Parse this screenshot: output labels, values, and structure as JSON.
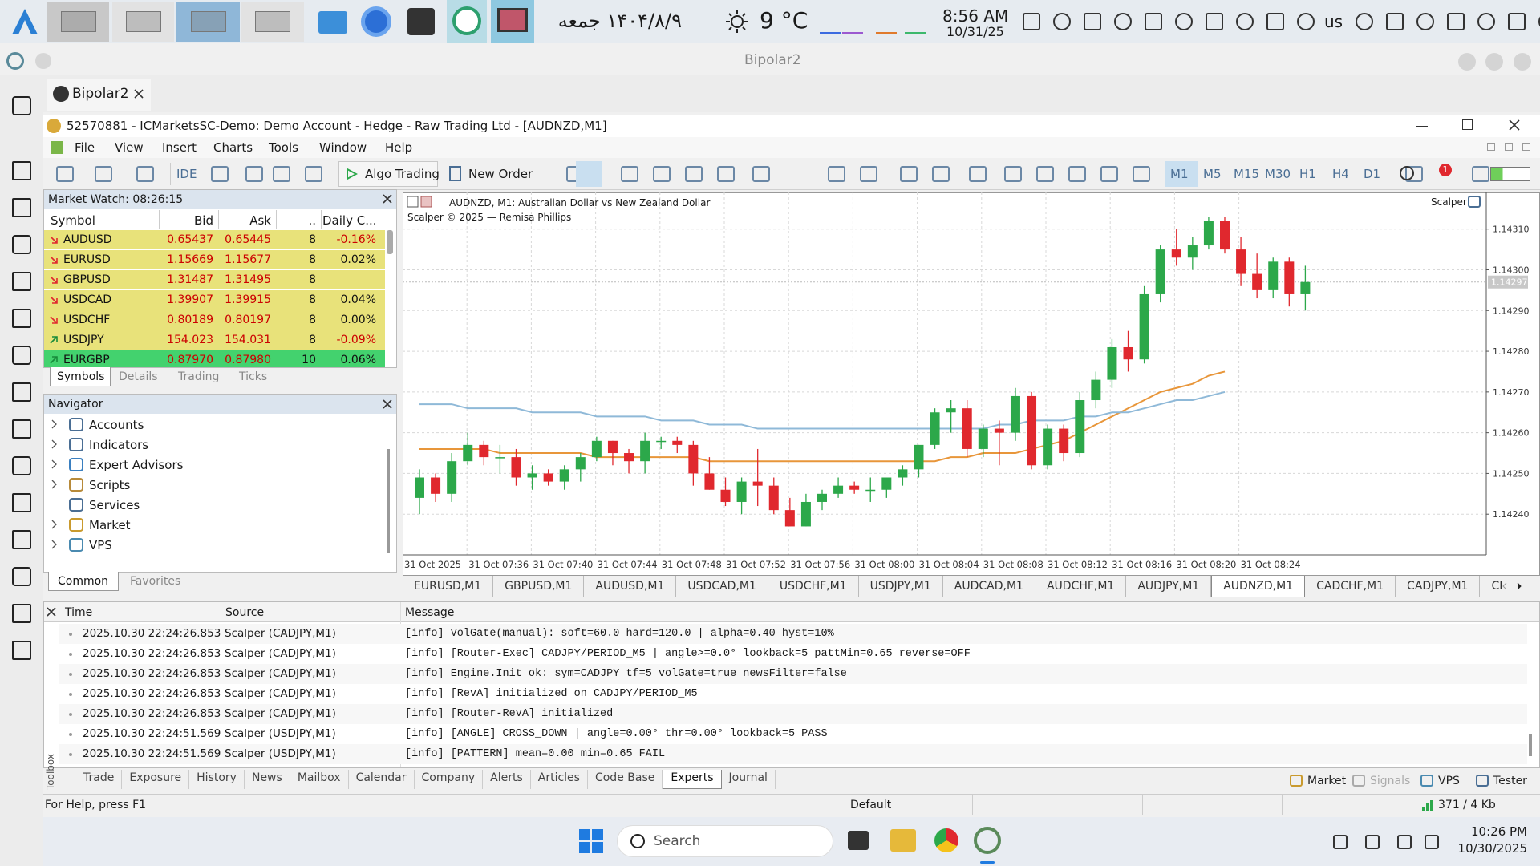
{
  "top_taskbar": {
    "persian_date": "۱۴۰۴/۸/۹ جمعه",
    "temperature": "9 °C",
    "time": "8:56 AM",
    "date": "10/31/25",
    "language": "us"
  },
  "window_title": "Bipolar2",
  "tab": "Bipolar2",
  "mt5": {
    "title": "52570881 - ICMarketsSC-Demo: Demo Account - Hedge - Raw Trading Ltd - [AUDNZD,M1]",
    "menu": [
      "File",
      "View",
      "Insert",
      "Charts",
      "Tools",
      "Window",
      "Help"
    ],
    "toolbar": {
      "ide": "IDE",
      "algo_trading": "Algo Trading",
      "new_order": "New Order",
      "timeframes": [
        "M1",
        "M5",
        "M15",
        "M30",
        "H1",
        "H4",
        "D1"
      ],
      "alerts_badge": 1
    },
    "market_watch": {
      "title": "Market Watch: 08:26:15",
      "columns": [
        "Symbol",
        "Bid",
        "Ask",
        "..",
        "Daily C..."
      ],
      "rows": [
        {
          "trend": "down",
          "cells": [
            "AUDUSD",
            "0.65437",
            "0.65445",
            "8",
            "-0.16%"
          ]
        },
        {
          "trend": "down",
          "cells": [
            "EURUSD",
            "1.15669",
            "1.15677",
            "8",
            "0.02%"
          ]
        },
        {
          "trend": "down",
          "cells": [
            "GBPUSD",
            "1.31487",
            "1.31495",
            "8"
          ]
        },
        {
          "trend": "down",
          "cells": [
            "USDCAD",
            "1.39907",
            "1.39915",
            "8",
            "0.04%"
          ]
        },
        {
          "trend": "down",
          "cells": [
            "USDCHF",
            "0.80189",
            "0.80197",
            "8",
            "0.00%"
          ]
        },
        {
          "trend": "up",
          "cells": [
            "USDJPY",
            "154.023",
            "154.031",
            "8",
            "-0.09%"
          ]
        },
        {
          "trend": "up",
          "cells": [
            "EURGBP",
            "0.87970",
            "0.87980",
            "10",
            "0.06%"
          ]
        }
      ],
      "tabs": [
        "Symbols",
        "Details",
        "Trading",
        "Ticks"
      ]
    },
    "navigator": {
      "title": "Navigator",
      "items": [
        "Accounts",
        "Indicators",
        "Expert Advisors",
        "Scripts",
        "Services",
        "Market",
        "VPS"
      ],
      "tabs": [
        "Common",
        "Favorites"
      ]
    },
    "chart_tabs": [
      "EURUSD,M1",
      "GBPUSD,M1",
      "AUDUSD,M1",
      "USDCAD,M1",
      "USDCHF,M1",
      "USDJPY,M1",
      "AUDCAD,M1",
      "AUDCHF,M1",
      "AUDJPY,M1",
      "AUDNZD,M1",
      "CADCHF,M1",
      "CADJPY,M1",
      "CI"
    ],
    "log": {
      "columns": [
        "Time",
        "Source",
        "Message"
      ],
      "rows": [
        [
          "2025.10.30 22:24:26.853",
          "Scalper (CADJPY,M1)",
          "[info]  VolGate(manual): soft=60.0 hard=120.0 | alpha=0.40 hyst=10%"
        ],
        [
          "2025.10.30 22:24:26.853",
          "Scalper (CADJPY,M1)",
          "[info]  [Router-Exec] CADJPY/PERIOD_M5 | angle>=0.0° lookback=5 pattMin=0.65 reverse=OFF"
        ],
        [
          "2025.10.30 22:24:26.853",
          "Scalper (CADJPY,M1)",
          "[info]  Engine.Init ok: sym=CADJPY tf=5 volGate=true newsFilter=false"
        ],
        [
          "2025.10.30 22:24:26.853",
          "Scalper (CADJPY,M1)",
          "[info]  [RevA] initialized on CADJPY/PERIOD_M5"
        ],
        [
          "2025.10.30 22:24:26.853",
          "Scalper (CADJPY,M1)",
          "[info]  [Router-RevA] initialized"
        ],
        [
          "2025.10.30 22:24:51.569",
          "Scalper (USDJPY,M1)",
          "[info]  [ANGLE] CROSS_DOWN | angle=0.00° thr=0.00° lookback=5 PASS"
        ],
        [
          "2025.10.30 22:24:51.569",
          "Scalper (USDJPY,M1)",
          "[info]  [PATTERN] mean=0.00 min=0.65 FAIL"
        ]
      ]
    },
    "toolbox_label": "Toolbox",
    "toolbox_tabs": [
      "Trade",
      "Exposure",
      "History",
      "News",
      "Mailbox",
      "Calendar",
      "Company",
      "Alerts",
      "Articles",
      "Code Base",
      "Experts",
      "Journal"
    ],
    "toolbox_right": [
      "Market",
      "Signals",
      "VPS",
      "Tester"
    ],
    "status": {
      "help": "For Help, press F1",
      "profile": "Default",
      "traffic": "371 / 4 Kb"
    }
  },
  "chart_data": {
    "type": "candlestick",
    "title": "AUDNZD, M1: Australian Dollar vs New Zealand Dollar",
    "subtitle": "Scalper © 2025 — Remisa Phillips",
    "expert": "Scalper",
    "time_labels": [
      "31 Oct 2025",
      "31 Oct 07:36",
      "31 Oct 07:40",
      "31 Oct 07:44",
      "31 Oct 07:48",
      "31 Oct 07:52",
      "31 Oct 07:56",
      "31 Oct 08:00",
      "31 Oct 08:04",
      "31 Oct 08:08",
      "31 Oct 08:12",
      "31 Oct 08:16",
      "31 Oct 08:20",
      "31 Oct 08:24"
    ],
    "open": [
      1.14244,
      1.14249,
      1.14245,
      1.14253,
      1.14257,
      1.14254,
      1.14254,
      1.14249,
      1.1425,
      1.14248,
      1.14251,
      1.14254,
      1.14258,
      1.14255,
      1.14253,
      1.14258,
      1.14258,
      1.14257,
      1.1425,
      1.14246,
      1.14243,
      1.14248,
      1.14247,
      1.14241,
      1.14237,
      1.14243,
      1.14245,
      1.14247,
      1.14246,
      1.14246,
      1.14249,
      1.14251,
      1.14257,
      1.14265,
      1.14266,
      1.14256,
      1.14261,
      1.1426,
      1.14269,
      1.14252,
      1.14261,
      1.14255,
      1.14268,
      1.14273,
      1.14281,
      1.14278,
      1.14294,
      1.14305,
      1.14303,
      1.14306,
      1.14312,
      1.14305,
      1.14299,
      1.14295,
      1.14302,
      1.14294
    ],
    "high": [
      1.14251,
      1.1425,
      1.14255,
      1.1426,
      1.14258,
      1.14257,
      1.14256,
      1.14252,
      1.14251,
      1.14252,
      1.14255,
      1.14259,
      1.14258,
      1.14256,
      1.1426,
      1.14259,
      1.14259,
      1.14258,
      1.14254,
      1.14249,
      1.14249,
      1.14256,
      1.14249,
      1.14244,
      1.14245,
      1.14246,
      1.14249,
      1.14248,
      1.14249,
      1.14249,
      1.14252,
      1.14257,
      1.14266,
      1.14268,
      1.14268,
      1.14262,
      1.14263,
      1.14271,
      1.1427,
      1.14262,
      1.14262,
      1.1427,
      1.14275,
      1.14283,
      1.14285,
      1.14296,
      1.14306,
      1.1431,
      1.14308,
      1.14313,
      1.14313,
      1.14308,
      1.14304,
      1.14303,
      1.14303,
      1.14301
    ],
    "low": [
      1.1424,
      1.14243,
      1.14243,
      1.14252,
      1.14252,
      1.1425,
      1.14247,
      1.14246,
      1.14247,
      1.14246,
      1.14248,
      1.14253,
      1.14252,
      1.1425,
      1.1425,
      1.14256,
      1.14255,
      1.14247,
      1.14246,
      1.14242,
      1.1424,
      1.14242,
      1.1424,
      1.14237,
      1.14237,
      1.14241,
      1.14244,
      1.14245,
      1.14243,
      1.14244,
      1.14247,
      1.14249,
      1.14256,
      1.1426,
      1.14254,
      1.14254,
      1.14252,
      1.14258,
      1.14251,
      1.14251,
      1.14253,
      1.14254,
      1.14266,
      1.14271,
      1.14275,
      1.14277,
      1.14292,
      1.14301,
      1.143,
      1.14305,
      1.14304,
      1.14296,
      1.14293,
      1.14293,
      1.14291,
      1.1429
    ],
    "close": [
      1.14249,
      1.14245,
      1.14253,
      1.14257,
      1.14254,
      1.14254,
      1.14249,
      1.1425,
      1.14248,
      1.14251,
      1.14254,
      1.14258,
      1.14255,
      1.14253,
      1.14258,
      1.14258,
      1.14257,
      1.1425,
      1.14246,
      1.14243,
      1.14248,
      1.14247,
      1.14241,
      1.14237,
      1.14243,
      1.14245,
      1.14247,
      1.14246,
      1.14246,
      1.14249,
      1.14251,
      1.14257,
      1.14265,
      1.14266,
      1.14256,
      1.14261,
      1.1426,
      1.14269,
      1.14252,
      1.14261,
      1.14255,
      1.14268,
      1.14273,
      1.14281,
      1.14278,
      1.14294,
      1.14305,
      1.14303,
      1.14306,
      1.14312,
      1.14305,
      1.14299,
      1.14295,
      1.14302,
      1.14294,
      1.14297
    ],
    "up_color": "#2ca84a",
    "down_color": "#e0282e",
    "series": [
      {
        "color": "#e8963a",
        "values": [
          1.14256,
          1.14256,
          1.14256,
          1.14256,
          1.14256,
          1.14255,
          1.14255,
          1.14255,
          1.14255,
          1.14255,
          1.14255,
          1.14254,
          1.14254,
          1.14254,
          1.14254,
          1.14254,
          1.14254,
          1.14254,
          1.14253,
          1.14253,
          1.14253,
          1.14253,
          1.14253,
          1.14253,
          1.14253,
          1.14253,
          1.14253,
          1.14253,
          1.14253,
          1.14253,
          1.14253,
          1.14253,
          1.14253,
          1.14254,
          1.14254,
          1.14255,
          1.14255,
          1.14255,
          1.14256,
          1.14257,
          1.14258,
          1.1426,
          1.14262,
          1.14264,
          1.14266,
          1.14268,
          1.1427,
          1.14271,
          1.14272,
          1.14274,
          1.14275,
          null,
          null,
          null,
          null,
          null
        ]
      },
      {
        "color": "#8fb9d8",
        "values": [
          1.14267,
          1.14267,
          1.14267,
          1.14266,
          1.14266,
          1.14266,
          1.14266,
          1.14265,
          1.14265,
          1.14265,
          1.14265,
          1.14264,
          1.14264,
          1.14264,
          1.14264,
          1.14263,
          1.14263,
          1.14263,
          1.14262,
          1.14262,
          1.14262,
          1.14261,
          1.14261,
          1.14261,
          1.14261,
          1.14261,
          1.14261,
          1.14261,
          1.14261,
          1.14261,
          1.14261,
          1.14261,
          1.14261,
          1.14261,
          1.14261,
          1.14261,
          1.14262,
          1.14262,
          1.14263,
          1.14263,
          1.14263,
          1.14264,
          1.14264,
          1.14265,
          1.14265,
          1.14266,
          1.14267,
          1.14268,
          1.14268,
          1.14269,
          1.1427,
          null,
          null,
          null,
          null,
          null
        ]
      }
    ],
    "current_price": 1.14297,
    "ylim": [
      1.1423,
      1.14319
    ],
    "yticks": [
      {
        "value": 1.1431,
        "label": "1.14310"
      },
      {
        "value": 1.143,
        "label": "1.14300"
      },
      {
        "value": 1.1429,
        "label": "1.14290"
      },
      {
        "value": 1.1428,
        "label": "1.14280"
      },
      {
        "value": 1.1427,
        "label": "1.14270"
      },
      {
        "value": 1.1426,
        "label": "1.14260"
      },
      {
        "value": 1.1425,
        "label": "1.14250"
      },
      {
        "value": 1.1424,
        "label": "1.14240"
      }
    ],
    "grid": true
  },
  "bottom_taskbar": {
    "search": "Search",
    "time": "10:26 PM",
    "date": "10/30/2025"
  }
}
